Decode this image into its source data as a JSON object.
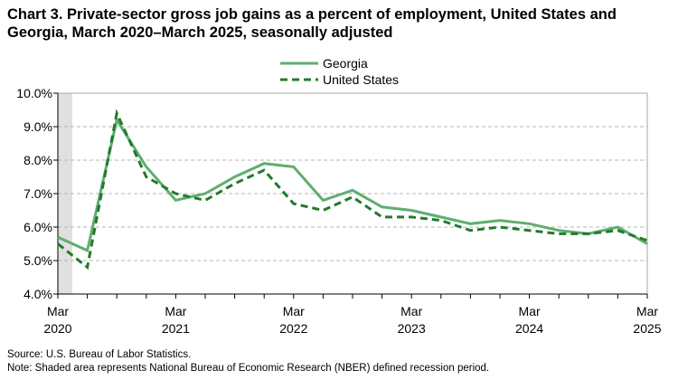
{
  "chart_data": {
    "type": "line",
    "title": "Chart 3. Private-sector gross job gains as a percent of employment, United States and Georgia, March 2020–March 2025, seasonally adjusted",
    "x": [
      "Mar 2020",
      "Jun 2020",
      "Sep 2020",
      "Dec 2020",
      "Mar 2021",
      "Jun 2021",
      "Sep 2021",
      "Dec 2021",
      "Mar 2022",
      "Jun 2022",
      "Sep 2022",
      "Dec 2022",
      "Mar 2023",
      "Jun 2023",
      "Sep 2023",
      "Dec 2023",
      "Mar 2024",
      "Jun 2024",
      "Sep 2024",
      "Dec 2024",
      "Mar 2025"
    ],
    "x_tick_labels": [
      [
        "Mar",
        "2020"
      ],
      [
        "Mar",
        "2021"
      ],
      [
        "Mar",
        "2022"
      ],
      [
        "Mar",
        "2023"
      ],
      [
        "Mar",
        "2024"
      ],
      [
        "Mar",
        "2025"
      ]
    ],
    "y_tick_labels": [
      "4.0%",
      "5.0%",
      "6.0%",
      "7.0%",
      "8.0%",
      "9.0%",
      "10.0%"
    ],
    "ylim": [
      4,
      10
    ],
    "grid": true,
    "legend_position": "top-center",
    "recession_shading": [
      "Mar 2020",
      "Apr 2020"
    ],
    "series": [
      {
        "name": "Georgia",
        "color": "#5fae6e",
        "style": "solid",
        "values": [
          5.7,
          5.3,
          9.2,
          7.8,
          6.8,
          7.0,
          7.5,
          7.9,
          7.8,
          6.8,
          7.1,
          6.6,
          6.5,
          6.3,
          6.1,
          6.2,
          6.1,
          5.9,
          5.8,
          6.0,
          5.5
        ]
      },
      {
        "name": "United States",
        "color": "#237a2c",
        "style": "dashed",
        "values": [
          5.5,
          4.8,
          9.4,
          7.5,
          7.0,
          6.8,
          7.3,
          7.7,
          6.7,
          6.5,
          6.9,
          6.3,
          6.3,
          6.2,
          5.9,
          6.0,
          5.9,
          5.8,
          5.8,
          5.9,
          5.6
        ]
      }
    ]
  },
  "notes": {
    "source": "Source: U.S. Bureau of Labor Statistics.",
    "note": "Note: Shaded area represents National Bureau of Economic Research (NBER) defined recession period."
  }
}
